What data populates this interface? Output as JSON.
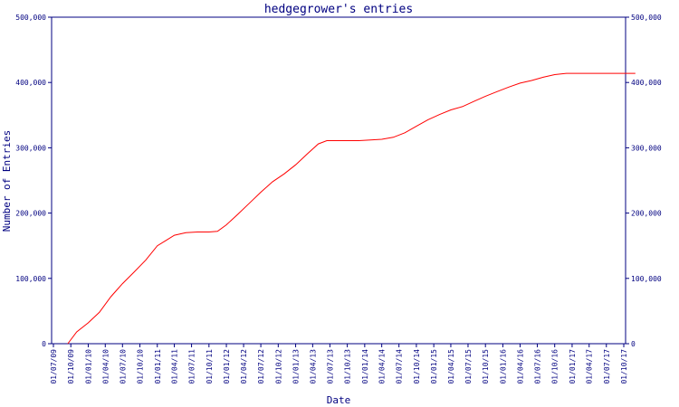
{
  "chart_data": {
    "type": "line",
    "title": "hedgegrower's entries",
    "xlabel": "Date",
    "ylabel": "Number of Entries",
    "ylim": [
      0,
      500000
    ],
    "y_ticks": [
      {
        "value": 0,
        "label": "0"
      },
      {
        "value": 100000,
        "label": "100,000"
      },
      {
        "value": 200000,
        "label": "200,000"
      },
      {
        "value": 300000,
        "label": "300,000"
      },
      {
        "value": 400000,
        "label": "400,000"
      },
      {
        "value": 500000,
        "label": "500,000"
      }
    ],
    "x_ticks": [
      "01/07/09",
      "01/10/09",
      "01/01/10",
      "01/04/10",
      "01/07/10",
      "01/10/10",
      "01/01/11",
      "01/04/11",
      "01/07/11",
      "01/10/11",
      "01/01/12",
      "01/04/12",
      "01/07/12",
      "01/10/12",
      "01/01/13",
      "01/04/13",
      "01/07/13",
      "01/10/13",
      "01/01/14",
      "01/04/14",
      "01/07/14",
      "01/10/14",
      "01/01/15",
      "01/04/15",
      "01/07/15",
      "01/10/15",
      "01/01/16",
      "01/04/16",
      "01/07/16",
      "01/10/16",
      "01/01/17",
      "01/04/17",
      "01/07/17",
      "01/10/17"
    ],
    "grid": false,
    "axis_color": "#000080",
    "series": [
      {
        "color": "#ff0000",
        "x": [
          "2009-09-15",
          "2009-11-01",
          "2010-01-01",
          "2010-03-01",
          "2010-05-01",
          "2010-07-01",
          "2010-09-01",
          "2010-11-01",
          "2011-01-01",
          "2011-02-15",
          "2011-04-01",
          "2011-06-01",
          "2011-08-01",
          "2011-10-01",
          "2011-11-15",
          "2012-01-01",
          "2012-03-01",
          "2012-05-01",
          "2012-07-01",
          "2012-09-01",
          "2012-11-01",
          "2013-01-01",
          "2013-03-01",
          "2013-05-01",
          "2013-06-15",
          "2013-08-01",
          "2013-10-01",
          "2013-12-01",
          "2014-02-01",
          "2014-04-01",
          "2014-06-01",
          "2014-08-01",
          "2014-10-01",
          "2014-12-01",
          "2015-02-01",
          "2015-04-01",
          "2015-06-01",
          "2015-08-01",
          "2015-10-01",
          "2015-12-01",
          "2016-02-01",
          "2016-04-01",
          "2016-06-01",
          "2016-08-01",
          "2016-10-01",
          "2016-12-01",
          "2017-02-01",
          "2017-04-01",
          "2017-06-01",
          "2017-08-01",
          "2017-10-01",
          "2017-12-01"
        ],
        "values": [
          0,
          18000,
          32000,
          48000,
          72000,
          92000,
          110000,
          128000,
          150000,
          158000,
          166000,
          170000,
          171000,
          171000,
          172000,
          182000,
          198000,
          215000,
          232000,
          248000,
          260000,
          274000,
          290000,
          306000,
          311000,
          311000,
          311000,
          311000,
          312000,
          313000,
          316000,
          323000,
          333000,
          343000,
          351000,
          358000,
          363000,
          371000,
          379000,
          386000,
          393000,
          399000,
          403000,
          408000,
          412000,
          414000,
          414000,
          414000,
          414000,
          414000,
          414000,
          414000
        ]
      }
    ]
  }
}
